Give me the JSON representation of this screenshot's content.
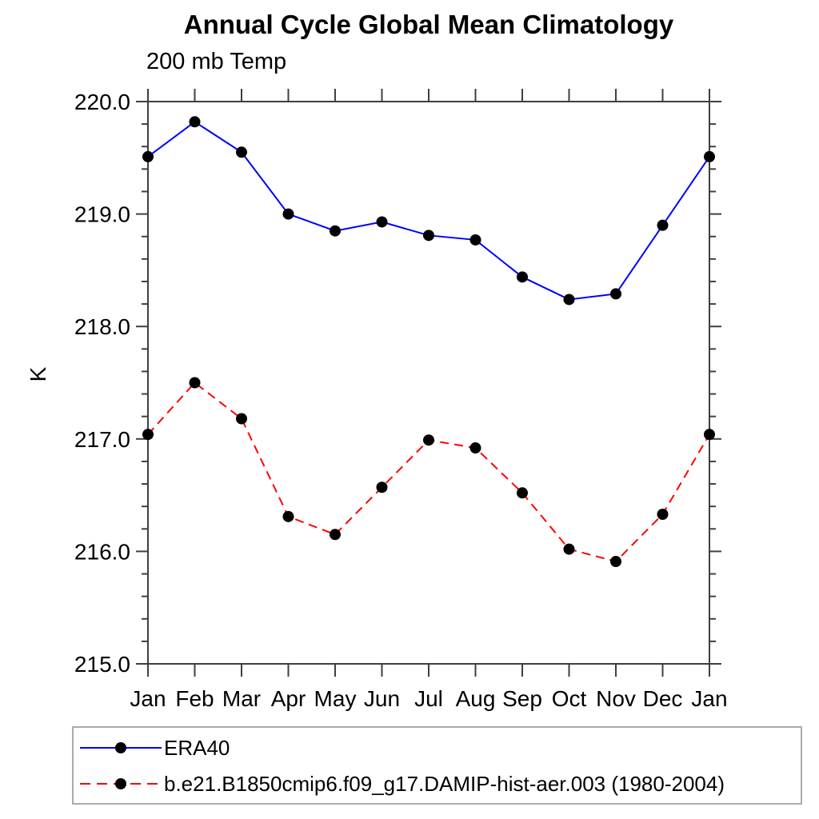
{
  "chart_data": {
    "type": "line",
    "title": "Annual Cycle Global Mean Climatology",
    "subtitle": "200 mb Temp",
    "ylabel": "K",
    "xlabel": "",
    "categories": [
      "Jan",
      "Feb",
      "Mar",
      "Apr",
      "May",
      "Jun",
      "Jul",
      "Aug",
      "Sep",
      "Oct",
      "Nov",
      "Dec",
      "Jan"
    ],
    "series": [
      {
        "name": "ERA40",
        "color": "#0000ff",
        "line_style": "solid",
        "marker": "circle",
        "marker_color": "#000000",
        "values": [
          219.51,
          219.82,
          219.55,
          219.0,
          218.85,
          218.93,
          218.81,
          218.77,
          218.44,
          218.24,
          218.29,
          218.9,
          219.51
        ]
      },
      {
        "name": "b.e21.B1850cmip6.f09_g17.DAMIP-hist-aer.003 (1980-2004)",
        "color": "#ff0000",
        "line_style": "dashed",
        "marker": "circle",
        "marker_color": "#000000",
        "values": [
          217.04,
          217.5,
          217.18,
          216.31,
          216.15,
          216.57,
          216.99,
          216.92,
          216.52,
          216.02,
          215.91,
          216.33,
          217.04
        ]
      }
    ],
    "ylim": [
      215.0,
      220.0
    ],
    "ytick_labels": [
      "215.0",
      "216.0",
      "217.0",
      "218.0",
      "219.0",
      "220.0"
    ],
    "ytick_major_interval": 1.0,
    "ytick_minor_interval": 0.2,
    "grid": false,
    "legend_position": "bottom-left-box"
  },
  "colors": {
    "axis": "#3f3f3f",
    "text": "#000000",
    "legend_border": "#ababab",
    "background": "#ffffff"
  }
}
